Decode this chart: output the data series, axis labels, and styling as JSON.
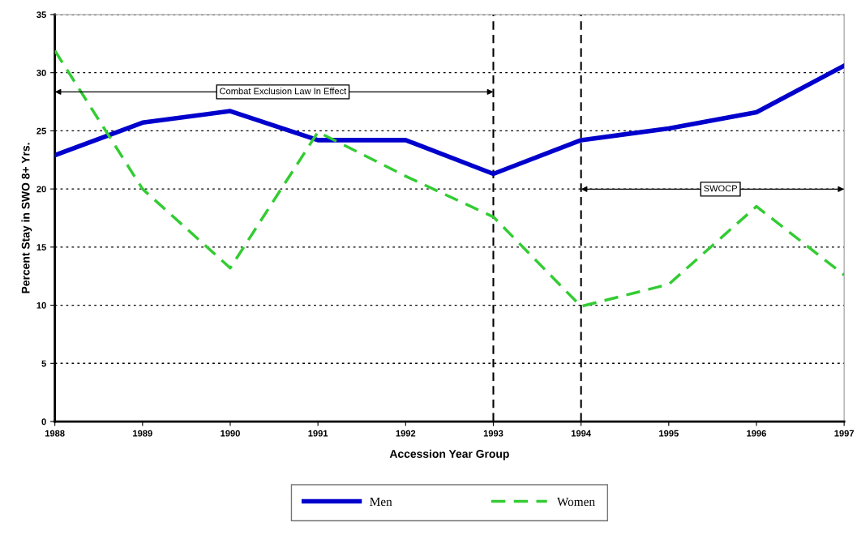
{
  "chart_data": {
    "type": "line",
    "xlabel": "Accession Year Group",
    "ylabel": "Percent Stay in SWO 8+ Yrs.",
    "x": [
      1988,
      1989,
      1990,
      1991,
      1992,
      1993,
      1994,
      1995,
      1996,
      1997
    ],
    "series": [
      {
        "name": "Men",
        "color": "#0000cc",
        "line_style": "solid",
        "values": [
          22.9,
          25.7,
          26.7,
          24.2,
          24.2,
          21.3,
          24.2,
          25.2,
          26.6,
          30.6
        ]
      },
      {
        "name": "Women",
        "color": "#33cc33",
        "line_style": "dashed",
        "values": [
          31.9,
          20.0,
          13.2,
          24.9,
          21.1,
          17.6,
          9.9,
          11.8,
          18.5,
          12.6
        ]
      }
    ],
    "xlim": [
      1988,
      1997
    ],
    "xticks": [
      1988,
      1989,
      1990,
      1991,
      1992,
      1993,
      1994,
      1995,
      1996,
      1997
    ],
    "ylim": [
      0,
      35
    ],
    "yticks": [
      0,
      5,
      10,
      15,
      20,
      25,
      30,
      35
    ],
    "grid": "y",
    "legend": "bottom",
    "marker": "none",
    "ref_lines": [
      {
        "axis": "x",
        "value": 1993,
        "color": "#000000",
        "line_style": "dashed"
      },
      {
        "axis": "x",
        "value": 1994,
        "color": "#000000",
        "line_style": "dashed"
      }
    ],
    "annotations": [
      "Combat Exclusion Law In Effect",
      "SWOCP"
    ]
  }
}
